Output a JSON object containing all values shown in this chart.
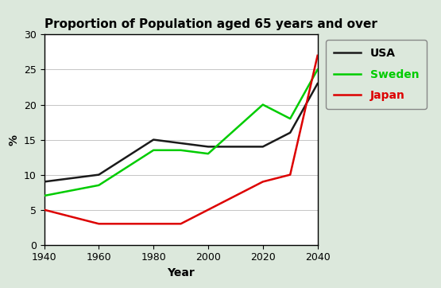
{
  "title": "Proportion of Population aged 65 years and over",
  "xlabel": "Year",
  "ylabel": "%",
  "years": [
    1940,
    1960,
    1980,
    1990,
    2000,
    2020,
    2030,
    2040
  ],
  "usa": [
    9,
    10,
    15,
    14.5,
    14,
    14,
    16,
    23
  ],
  "sweden": [
    7,
    8.5,
    13.5,
    13.5,
    13,
    20,
    18,
    25
  ],
  "japan": [
    5,
    3,
    3,
    3,
    5,
    9,
    10,
    27
  ],
  "usa_color": "#1a1a1a",
  "sweden_color": "#00cc00",
  "japan_color": "#dd0000",
  "ylim": [
    0,
    30
  ],
  "xlim": [
    1940,
    2040
  ],
  "xticks": [
    1940,
    1960,
    1980,
    2000,
    2020,
    2040
  ],
  "yticks": [
    0,
    5,
    10,
    15,
    20,
    25,
    30
  ],
  "background_color": "#dce8dc",
  "plot_bg": "#ffffff",
  "legend_labels": [
    "USA",
    "Sweden",
    "Japan"
  ],
  "legend_text_colors": [
    "#000000",
    "#00cc00",
    "#dd0000"
  ],
  "legend_line_colors": [
    "#1a1a1a",
    "#00cc00",
    "#dd0000"
  ],
  "title_fontsize": 11,
  "axis_label_fontsize": 10,
  "tick_fontsize": 9,
  "legend_fontsize": 10,
  "linewidth": 1.8
}
